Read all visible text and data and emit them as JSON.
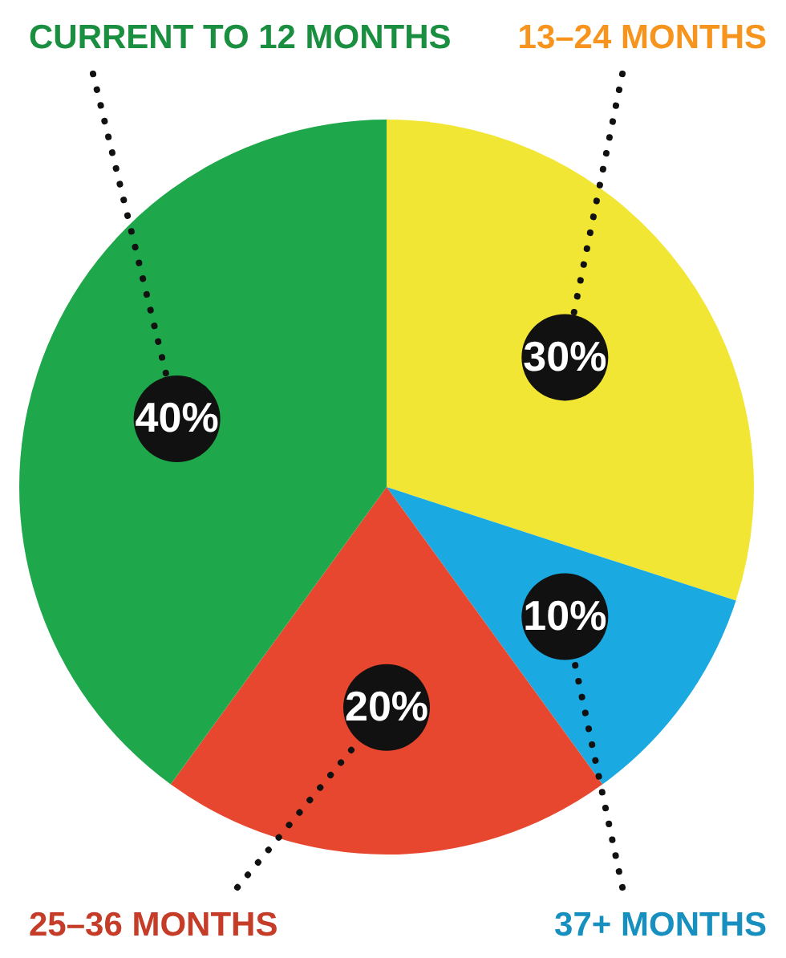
{
  "chart_data": {
    "type": "pie",
    "categories": [
      "13–24 MONTHS",
      "37+ MONTHS",
      "25–36 MONTHS",
      "CURRENT TO 12 MONTHS"
    ],
    "values": [
      30,
      10,
      20,
      40
    ],
    "colors": [
      "#f2e634",
      "#1ba9e1",
      "#e8472f",
      "#1fa84b"
    ],
    "value_labels": [
      "30%",
      "10%",
      "20%",
      "40%"
    ],
    "legend": false
  }
}
